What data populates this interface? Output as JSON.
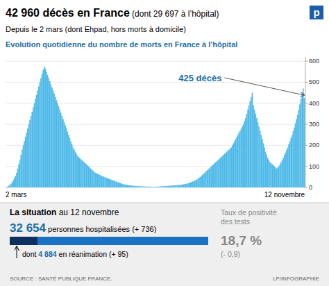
{
  "chart_data": {
    "type": "bar",
    "title": "42 960 décès en France",
    "title_suffix": " (dont 29 697 à l’hôpital)",
    "subtitle": "Depuis le 2 mars (dont Ehpad, hors morts à domicile)",
    "chart_title": "Evolution quotidienne du nombre de morts en France à l’hôpital",
    "x_label_left": "2 mars",
    "x_label_right": "12 novembre",
    "annotation": "425 décès",
    "color": "#4BB8E8",
    "ylim": [
      0,
      620
    ],
    "yticks": [
      0,
      100,
      200,
      300,
      400,
      500,
      600
    ],
    "grid": true,
    "values": [
      3,
      5,
      8,
      12,
      18,
      25,
      35,
      45,
      55,
      70,
      90,
      110,
      130,
      155,
      180,
      200,
      220,
      240,
      260,
      280,
      300,
      320,
      340,
      360,
      380,
      400,
      420,
      440,
      460,
      480,
      500,
      520,
      540,
      560,
      575,
      565,
      550,
      535,
      520,
      505,
      490,
      475,
      460,
      445,
      430,
      415,
      400,
      385,
      370,
      355,
      340,
      325,
      310,
      295,
      280,
      265,
      250,
      235,
      220,
      205,
      190,
      180,
      170,
      160,
      150,
      145,
      140,
      135,
      130,
      125,
      120,
      115,
      110,
      105,
      100,
      95,
      90,
      85,
      80,
      75,
      70,
      68,
      65,
      62,
      60,
      58,
      55,
      53,
      50,
      48,
      46,
      44,
      42,
      40,
      38,
      36,
      34,
      32,
      30,
      28,
      26,
      24,
      22,
      20,
      18,
      16,
      15,
      14,
      13,
      12,
      11,
      10,
      9,
      9,
      8,
      8,
      7,
      7,
      6,
      6,
      6,
      5,
      5,
      5,
      5,
      4,
      4,
      4,
      4,
      4,
      3,
      3,
      3,
      3,
      3,
      3,
      4,
      4,
      4,
      5,
      5,
      5,
      6,
      6,
      7,
      7,
      8,
      8,
      8,
      9,
      9,
      10,
      10,
      10,
      11,
      11,
      12,
      12,
      13,
      14,
      15,
      16,
      17,
      18,
      20,
      22,
      24,
      26,
      28,
      30,
      32,
      35,
      38,
      42,
      46,
      50,
      55,
      60,
      65,
      70,
      75,
      80,
      85,
      90,
      95,
      100,
      105,
      110,
      115,
      120,
      125,
      130,
      135,
      140,
      145,
      150,
      155,
      160,
      165,
      170,
      175,
      180,
      185,
      190,
      200,
      210,
      220,
      230,
      240,
      250,
      260,
      270,
      280,
      290,
      300,
      315,
      330,
      350,
      370,
      390,
      410,
      430,
      450,
      390,
      370,
      350,
      330,
      310,
      290,
      270,
      250,
      230,
      210,
      190,
      170,
      155,
      140,
      130,
      120,
      115,
      110,
      105,
      100,
      95,
      90,
      95,
      100,
      110,
      120,
      130,
      140,
      155,
      165,
      178,
      190,
      205,
      220,
      235,
      250,
      268,
      285,
      305,
      325,
      345,
      370,
      395,
      420,
      445,
      470,
      425
    ]
  },
  "logo": "p",
  "situation": {
    "title": "La situation",
    "title_suffix": " au 12 novembre",
    "hospitalised_number": "32 654",
    "hospitalised_text": " personnes hospitalisées (+ 736)",
    "icu_prefix": "dont ",
    "icu_number": "4 884",
    "icu_text": " en réanimation (+ 95)",
    "positivity_label": "Taux de positivité\ndes tests",
    "positivity_value": "18,7 %",
    "positivity_change": "(- 0,9)"
  },
  "source": "SOURCE : SANTÉ PUBLIQUE FRANCE.",
  "credit": "LP/INFOGRAPHIE"
}
